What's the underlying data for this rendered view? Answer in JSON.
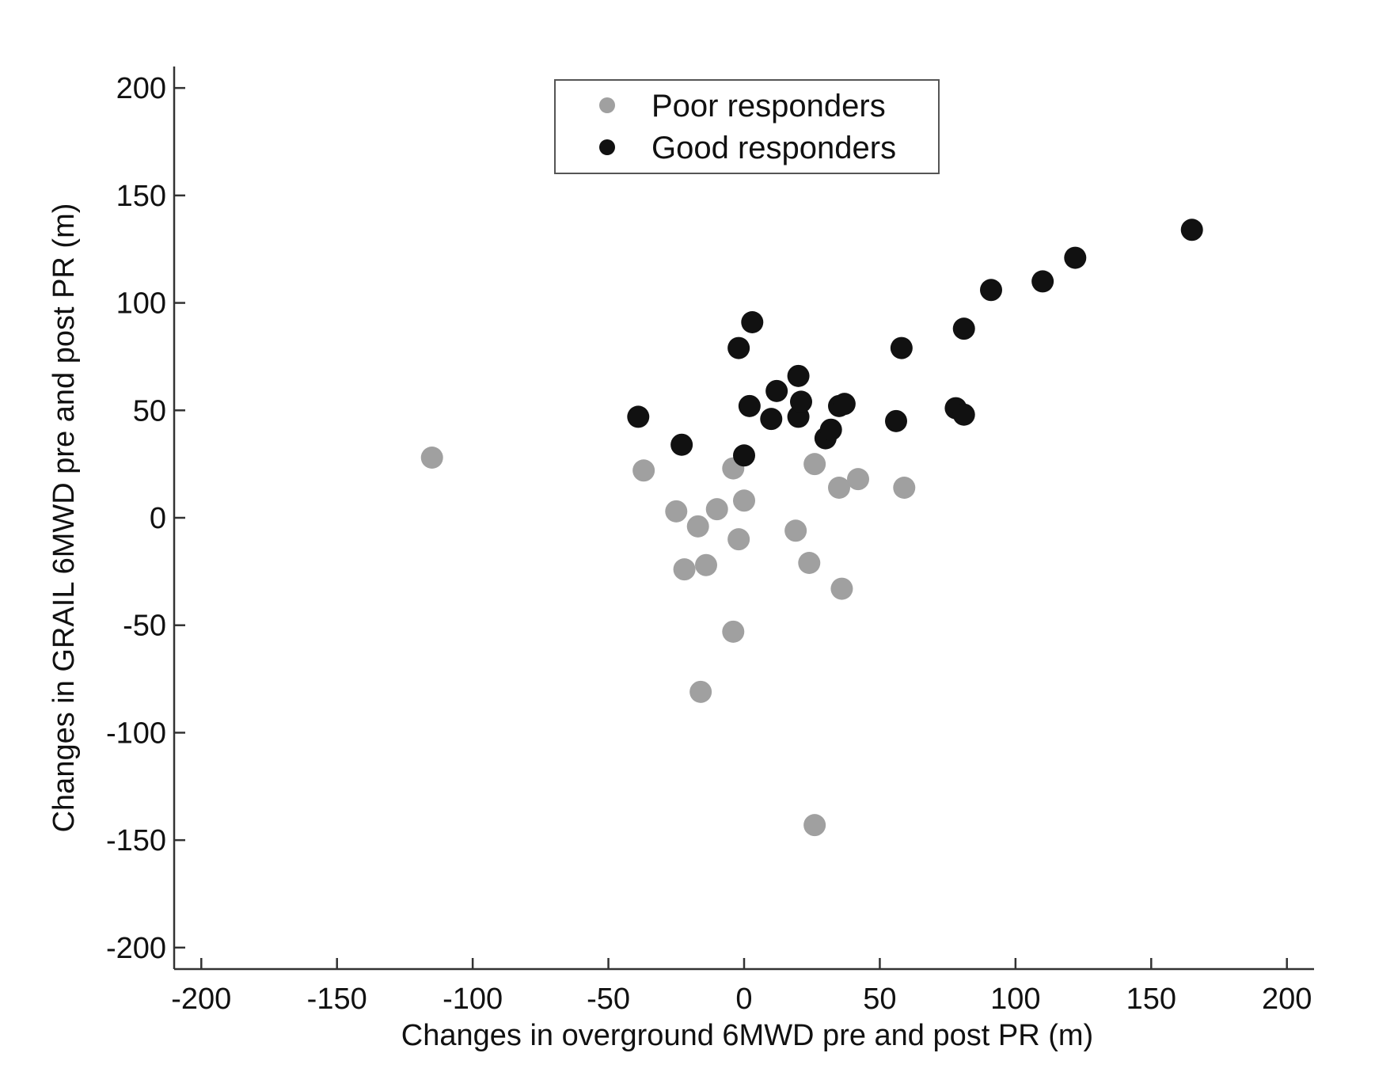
{
  "chart_data": {
    "type": "scatter",
    "title": "",
    "xlabel": "Changes in overground 6MWD pre and post PR (m)",
    "ylabel": "Changes in GRAIL 6MWD pre and post PR (m)",
    "xlim": [
      -210,
      210
    ],
    "ylim": [
      -210,
      210
    ],
    "xticks": [
      -200,
      -150,
      -100,
      -50,
      0,
      50,
      100,
      150,
      200
    ],
    "yticks": [
      -200,
      -150,
      -100,
      -50,
      0,
      50,
      100,
      150,
      200
    ],
    "xtick_labels": [
      "-200",
      "-150",
      "-100",
      "-50",
      "0",
      "50",
      "100",
      "150",
      "200"
    ],
    "ytick_labels": [
      "-200",
      "-150",
      "-100",
      "-50",
      "0",
      "50",
      "100",
      "150",
      "200"
    ],
    "grid": false,
    "legend_position": "top-center",
    "series": [
      {
        "name": "Poor responders",
        "color": "#a0a0a0",
        "points": [
          {
            "x": -115,
            "y": 28
          },
          {
            "x": -37,
            "y": 22
          },
          {
            "x": -25,
            "y": 3
          },
          {
            "x": -22,
            "y": -24
          },
          {
            "x": -17,
            "y": -4
          },
          {
            "x": -14,
            "y": -22
          },
          {
            "x": -16,
            "y": -81
          },
          {
            "x": -10,
            "y": 4
          },
          {
            "x": -4,
            "y": -53
          },
          {
            "x": -4,
            "y": 23
          },
          {
            "x": -2,
            "y": -10
          },
          {
            "x": 0,
            "y": 8
          },
          {
            "x": 19,
            "y": -6
          },
          {
            "x": 24,
            "y": -21
          },
          {
            "x": 26,
            "y": 25
          },
          {
            "x": 26,
            "y": -143
          },
          {
            "x": 35,
            "y": 14
          },
          {
            "x": 36,
            "y": -33
          },
          {
            "x": 42,
            "y": 18
          },
          {
            "x": 59,
            "y": 14
          }
        ]
      },
      {
        "name": "Good responders",
        "color": "#111111",
        "points": [
          {
            "x": -39,
            "y": 47
          },
          {
            "x": -23,
            "y": 34
          },
          {
            "x": -2,
            "y": 79
          },
          {
            "x": 0,
            "y": 29
          },
          {
            "x": 2,
            "y": 52
          },
          {
            "x": 3,
            "y": 91
          },
          {
            "x": 10,
            "y": 46
          },
          {
            "x": 12,
            "y": 59
          },
          {
            "x": 20,
            "y": 66
          },
          {
            "x": 20,
            "y": 47
          },
          {
            "x": 21,
            "y": 54
          },
          {
            "x": 30,
            "y": 37
          },
          {
            "x": 32,
            "y": 41
          },
          {
            "x": 35,
            "y": 52
          },
          {
            "x": 37,
            "y": 53
          },
          {
            "x": 56,
            "y": 45
          },
          {
            "x": 58,
            "y": 79
          },
          {
            "x": 78,
            "y": 51
          },
          {
            "x": 81,
            "y": 88
          },
          {
            "x": 81,
            "y": 48
          },
          {
            "x": 91,
            "y": 106
          },
          {
            "x": 110,
            "y": 110
          },
          {
            "x": 122,
            "y": 121
          },
          {
            "x": 165,
            "y": 134
          }
        ]
      }
    ]
  }
}
